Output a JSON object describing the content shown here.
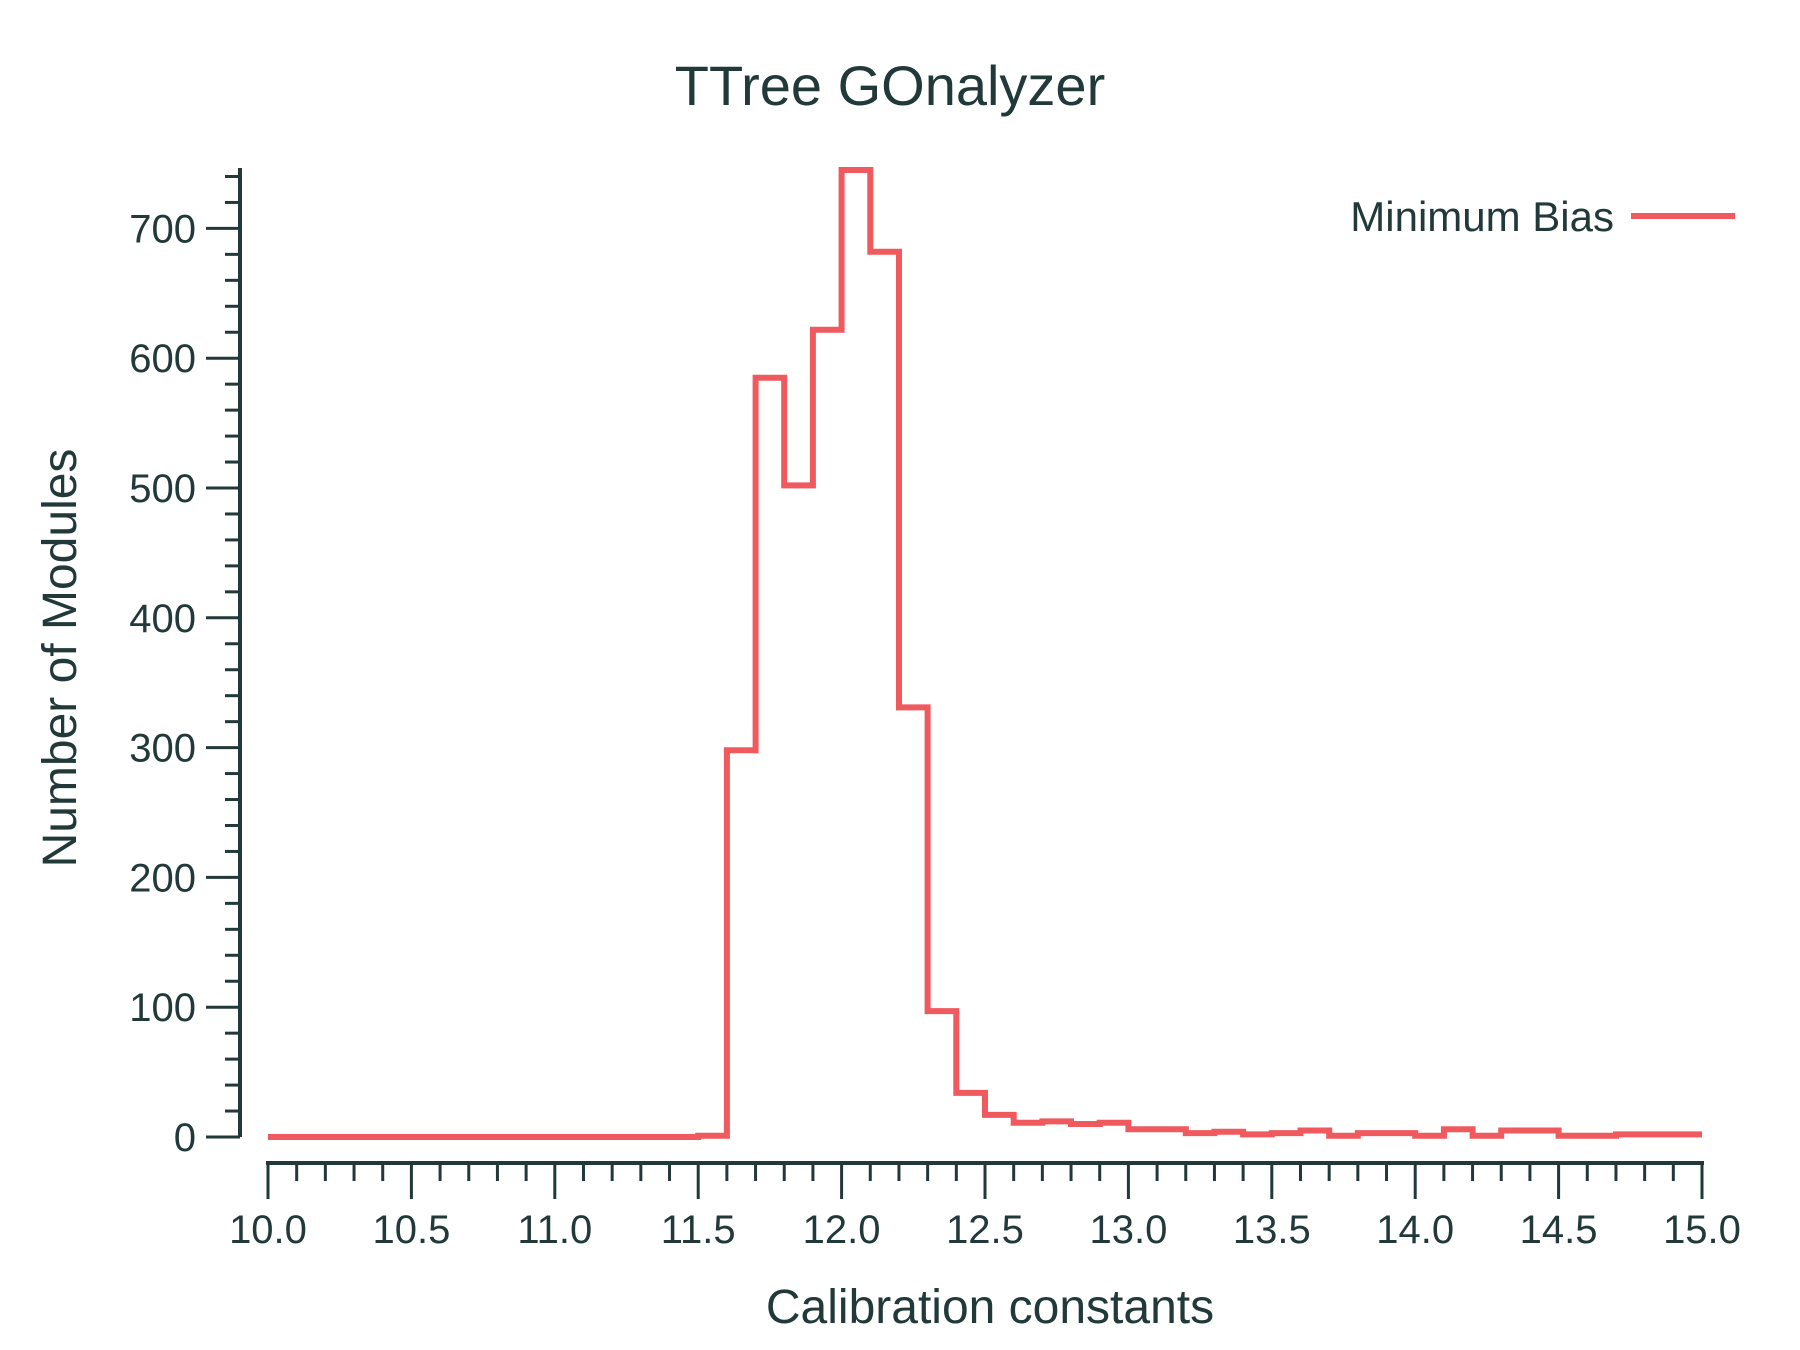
{
  "chart_data": {
    "type": "histogram-step",
    "title": "TTree GOnalyzer",
    "xlabel": "Calibration constants",
    "ylabel": "Number of Modules",
    "xlim": [
      10.0,
      15.0
    ],
    "ylim": [
      0,
      745
    ],
    "x_ticks": [
      "10.0",
      "10.5",
      "11.0",
      "11.5",
      "12.0",
      "12.5",
      "13.0",
      "13.5",
      "14.0",
      "14.5",
      "15.0"
    ],
    "y_ticks": [
      "0",
      "100",
      "200",
      "300",
      "400",
      "500",
      "600",
      "700"
    ],
    "legend_position": "top-right",
    "bin_width": 0.1,
    "series": [
      {
        "name": "Minimum Bias",
        "color": "#f05a5f",
        "bin_edges_start": 10.0,
        "values": [
          0,
          0,
          0,
          0,
          0,
          0,
          0,
          0,
          0,
          0,
          0,
          0,
          0,
          0,
          0,
          1,
          298,
          585,
          502,
          622,
          745,
          682,
          331,
          97,
          34,
          17,
          11,
          12,
          10,
          11,
          6,
          6,
          3,
          4,
          2,
          3,
          5,
          1,
          3,
          3,
          1,
          6,
          1,
          5,
          5,
          1,
          1,
          2,
          2,
          2
        ]
      }
    ]
  }
}
